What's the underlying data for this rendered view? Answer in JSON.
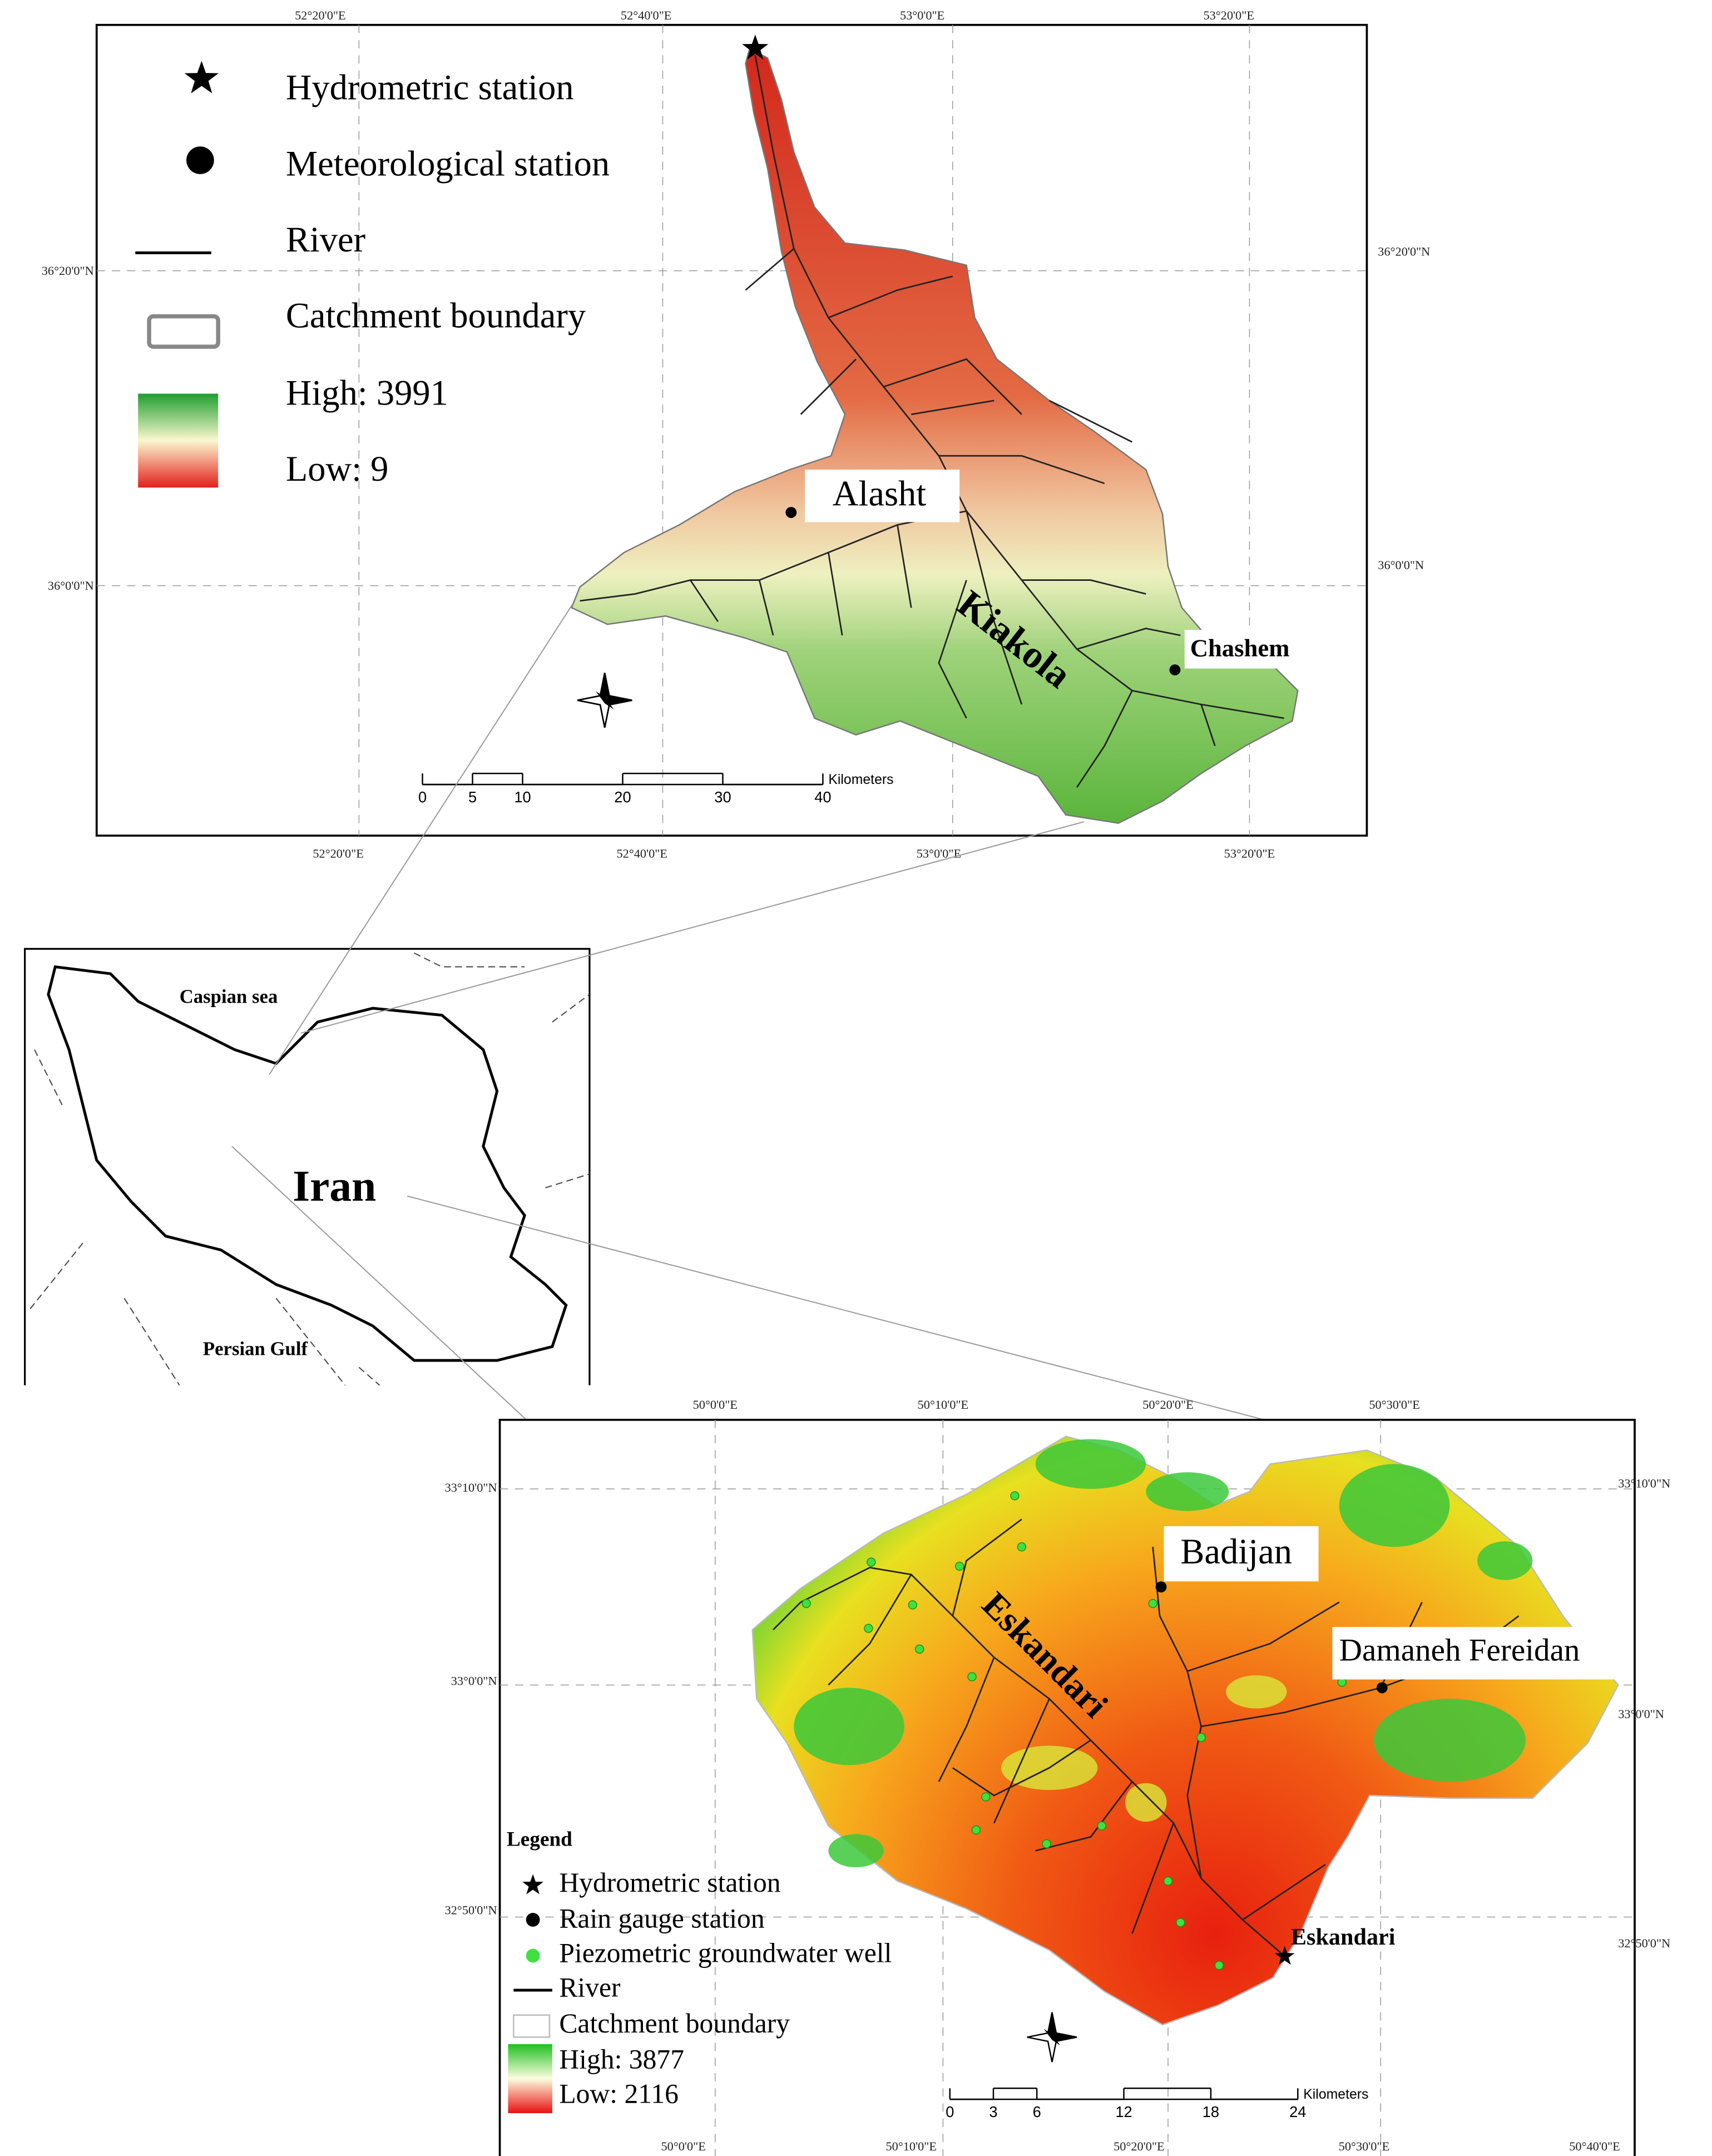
{
  "top_map": {
    "x_labels_top": [
      "52°20'0\"E",
      "52°40'0\"E",
      "53°0'0\"E",
      "53°20'0\"E"
    ],
    "x_labels_bottom": [
      "52°20'0\"E",
      "52°40'0\"E",
      "53°0'0\"E",
      "53°20'0\"E"
    ],
    "y_labels_left": [
      "36°20'0\"N",
      "36°0'0\"N"
    ],
    "y_labels_right": [
      "36°20'0\"N",
      "36°0'0\"N"
    ],
    "legend": [
      "Hydrometric station",
      "Meteorological station",
      "River",
      "Catchment boundary",
      "High: 3991",
      "Low: 9"
    ],
    "places": {
      "station_1": "Alasht",
      "river": "Kiakola",
      "station_2": "Chashem"
    },
    "scale": {
      "ticks": [
        0,
        5,
        10,
        20,
        30,
        40
      ],
      "unit": "Kilometers"
    }
  },
  "inset": {
    "sea": "Caspian sea",
    "country": "Iran",
    "gulf": "Persian Gulf"
  },
  "bottom_map": {
    "x_labels_top": [
      "50°0'0\"E",
      "50°10'0\"E",
      "50°20'0\"E",
      "50°30'0\"E"
    ],
    "x_labels_bottom": [
      "50°0'0\"E",
      "50°10'0\"E",
      "50°20'0\"E",
      "50°30'0\"E",
      "50°40'0\"E"
    ],
    "y_labels_left": [
      "33°10'0\"N",
      "33°0'0\"N",
      "32°50'0\"N"
    ],
    "y_labels_right": [
      "33°10'0\"N",
      "33°0'0\"N",
      "32°50'0\"N"
    ],
    "legend_title": "Legend",
    "legend": [
      "Hydrometric station",
      "Rain gauge station",
      "Piezometric groundwater well",
      "River",
      "Catchment boundary",
      "High: 3877",
      "Low: 2116"
    ],
    "places": {
      "station_1": "Badijan",
      "station_2": "Damaneh Fereidan",
      "river": "Eskandari",
      "outlet": "Eskandari"
    },
    "scale": {
      "ticks": [
        0,
        3,
        6,
        12,
        18,
        24
      ],
      "unit": "Kilometers"
    }
  }
}
